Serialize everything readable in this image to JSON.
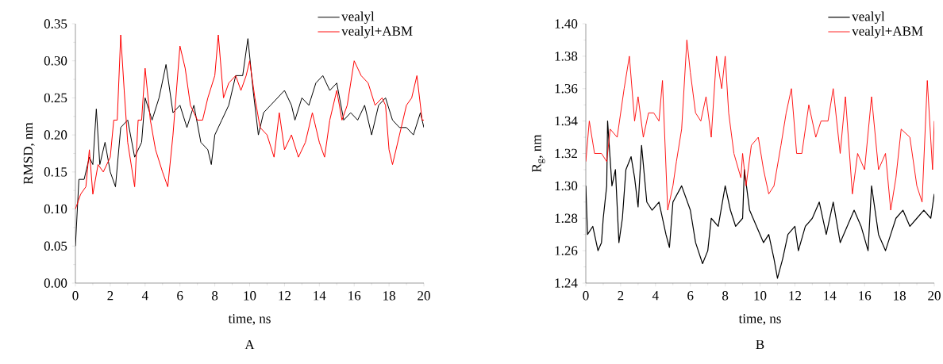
{
  "chart_data": [
    {
      "type": "line",
      "title": "A",
      "xlabel": "time, ns",
      "ylabel": "RMSD, nm",
      "legend": "top right",
      "xlim": [
        0,
        20
      ],
      "xticks": [
        0,
        2,
        4,
        6,
        8,
        10,
        12,
        14,
        16,
        18,
        20
      ],
      "ylim": [
        0,
        0.35
      ],
      "yticks": [
        {
          "value": 0,
          "label": "0.00"
        },
        {
          "value": 0.05,
          "label": "0.05"
        },
        {
          "value": 0.1,
          "label": "0.10"
        },
        {
          "value": 0.15,
          "label": "0.15"
        },
        {
          "value": 0.2,
          "label": "0.20"
        },
        {
          "value": 0.25,
          "label": "0.25"
        },
        {
          "value": 0.3,
          "label": "0.30"
        },
        {
          "value": 0.35,
          "label": "0.35"
        }
      ],
      "series": [
        {
          "name": "vealyl",
          "color": "#000000",
          "x": [
            0,
            0.2,
            0.5,
            0.8,
            1.0,
            1.2,
            1.4,
            1.7,
            2.0,
            2.3,
            2.6,
            3.0,
            3.4,
            3.8,
            4.0,
            4.4,
            4.8,
            5.2,
            5.6,
            6.0,
            6.4,
            6.8,
            7.2,
            7.6,
            7.8,
            8.0,
            8.4,
            8.8,
            9.2,
            9.6,
            9.9,
            10.2,
            10.5,
            10.8,
            11.2,
            11.6,
            12.0,
            12.4,
            12.6,
            13.0,
            13.4,
            13.8,
            14.2,
            14.6,
            15.0,
            15.4,
            15.8,
            16.2,
            16.6,
            17.0,
            17.4,
            17.8,
            18.2,
            18.6,
            19.0,
            19.4,
            19.8,
            20.0
          ],
          "values": [
            0.05,
            0.14,
            0.14,
            0.17,
            0.16,
            0.235,
            0.16,
            0.19,
            0.15,
            0.13,
            0.21,
            0.22,
            0.17,
            0.19,
            0.25,
            0.22,
            0.25,
            0.295,
            0.23,
            0.24,
            0.21,
            0.24,
            0.19,
            0.18,
            0.16,
            0.2,
            0.22,
            0.24,
            0.28,
            0.28,
            0.33,
            0.26,
            0.2,
            0.23,
            0.24,
            0.25,
            0.26,
            0.24,
            0.22,
            0.25,
            0.24,
            0.27,
            0.28,
            0.26,
            0.27,
            0.22,
            0.23,
            0.22,
            0.24,
            0.2,
            0.24,
            0.25,
            0.22,
            0.21,
            0.21,
            0.2,
            0.23,
            0.21
          ]
        },
        {
          "name": "vealyl+ABM",
          "color": "#ff0000",
          "x": [
            0,
            0.3,
            0.6,
            0.8,
            1.0,
            1.3,
            1.6,
            2.0,
            2.2,
            2.4,
            2.6,
            2.8,
            3.0,
            3.4,
            3.6,
            3.8,
            4.0,
            4.3,
            4.6,
            5.0,
            5.3,
            5.6,
            6.0,
            6.3,
            6.6,
            7.0,
            7.3,
            7.6,
            8.0,
            8.2,
            8.5,
            8.8,
            9.2,
            9.5,
            9.8,
            10.0,
            10.3,
            10.6,
            11.0,
            11.4,
            11.7,
            12.0,
            12.4,
            12.8,
            13.2,
            13.6,
            14.0,
            14.3,
            14.6,
            15.0,
            15.3,
            15.6,
            16.0,
            16.4,
            16.8,
            17.2,
            17.6,
            17.8,
            18.0,
            18.2,
            18.6,
            19.0,
            19.3,
            19.6,
            19.9,
            20.0
          ],
          "values": [
            0.1,
            0.12,
            0.13,
            0.18,
            0.12,
            0.16,
            0.15,
            0.17,
            0.22,
            0.22,
            0.335,
            0.26,
            0.19,
            0.13,
            0.22,
            0.22,
            0.29,
            0.22,
            0.18,
            0.15,
            0.13,
            0.2,
            0.32,
            0.29,
            0.24,
            0.22,
            0.22,
            0.25,
            0.28,
            0.335,
            0.25,
            0.27,
            0.28,
            0.26,
            0.28,
            0.3,
            0.25,
            0.21,
            0.2,
            0.17,
            0.23,
            0.18,
            0.2,
            0.17,
            0.19,
            0.23,
            0.19,
            0.17,
            0.22,
            0.26,
            0.22,
            0.24,
            0.3,
            0.28,
            0.27,
            0.24,
            0.25,
            0.24,
            0.18,
            0.16,
            0.2,
            0.24,
            0.25,
            0.28,
            0.22,
            0.22
          ]
        }
      ]
    },
    {
      "type": "line",
      "title": "B",
      "xlabel": "time, ns",
      "ylabel": "R$_{g}$, nm",
      "legend": "top right",
      "xlim": [
        0,
        20
      ],
      "xticks": [
        0,
        2,
        4,
        6,
        8,
        10,
        12,
        14,
        16,
        18,
        20
      ],
      "ylim": [
        1.24,
        1.4
      ],
      "yticks": [
        {
          "value": 1.24,
          "label": "1.24"
        },
        {
          "value": 1.26,
          "label": "1.26"
        },
        {
          "value": 1.28,
          "label": "1.28"
        },
        {
          "value": 1.3,
          "label": "1.30"
        },
        {
          "value": 1.32,
          "label": "1.32"
        },
        {
          "value": 1.34,
          "label": "1.34"
        },
        {
          "value": 1.36,
          "label": "1.36"
        },
        {
          "value": 1.38,
          "label": "1.38"
        },
        {
          "value": 1.4,
          "label": "1.40"
        }
      ],
      "series": [
        {
          "name": "vealyl",
          "color": "#000000",
          "x": [
            0,
            0.1,
            0.4,
            0.7,
            0.9,
            1.0,
            1.2,
            1.25,
            1.5,
            1.7,
            1.9,
            2.1,
            2.3,
            2.6,
            2.8,
            3.0,
            3.2,
            3.5,
            3.8,
            4.2,
            4.6,
            4.8,
            5.0,
            5.5,
            6.0,
            6.3,
            6.7,
            7.0,
            7.2,
            7.6,
            8.0,
            8.3,
            8.6,
            9.0,
            9.1,
            9.4,
            9.8,
            10.2,
            10.5,
            10.8,
            11.0,
            11.3,
            11.6,
            12.0,
            12.2,
            12.6,
            13.0,
            13.4,
            13.8,
            14.2,
            14.6,
            15.0,
            15.4,
            15.8,
            16.2,
            16.4,
            16.8,
            17.2,
            17.5,
            17.8,
            18.2,
            18.6,
            19.0,
            19.4,
            19.8,
            20.0
          ],
          "values": [
            1.3,
            1.27,
            1.275,
            1.26,
            1.265,
            1.28,
            1.3,
            1.34,
            1.3,
            1.31,
            1.265,
            1.28,
            1.31,
            1.318,
            1.305,
            1.287,
            1.325,
            1.29,
            1.285,
            1.29,
            1.27,
            1.262,
            1.29,
            1.3,
            1.285,
            1.265,
            1.252,
            1.26,
            1.28,
            1.275,
            1.3,
            1.285,
            1.275,
            1.28,
            1.31,
            1.285,
            1.275,
            1.265,
            1.27,
            1.255,
            1.243,
            1.255,
            1.27,
            1.275,
            1.26,
            1.275,
            1.28,
            1.29,
            1.27,
            1.29,
            1.265,
            1.275,
            1.285,
            1.275,
            1.26,
            1.3,
            1.27,
            1.26,
            1.27,
            1.28,
            1.285,
            1.275,
            1.28,
            1.285,
            1.28,
            1.295
          ]
        },
        {
          "name": "vealyl+ABM",
          "color": "#ff0000",
          "x": [
            0,
            0.2,
            0.5,
            0.9,
            1.2,
            1.4,
            1.8,
            2.2,
            2.5,
            2.8,
            3.0,
            3.3,
            3.6,
            3.9,
            4.2,
            4.4,
            4.7,
            5.0,
            5.2,
            5.5,
            5.8,
            6.0,
            6.3,
            6.6,
            6.9,
            7.2,
            7.5,
            7.8,
            8.0,
            8.2,
            8.5,
            8.9,
            9.0,
            9.2,
            9.5,
            9.9,
            10.2,
            10.5,
            10.8,
            11.2,
            11.5,
            11.8,
            12.1,
            12.4,
            12.8,
            13.2,
            13.5,
            13.9,
            14.2,
            14.6,
            14.9,
            15.3,
            15.6,
            16.0,
            16.4,
            16.8,
            17.2,
            17.5,
            17.8,
            18.1,
            18.6,
            19.0,
            19.3,
            19.6,
            19.9,
            20.0
          ],
          "values": [
            1.315,
            1.34,
            1.32,
            1.32,
            1.315,
            1.335,
            1.33,
            1.36,
            1.38,
            1.34,
            1.355,
            1.33,
            1.345,
            1.345,
            1.34,
            1.365,
            1.285,
            1.3,
            1.315,
            1.335,
            1.39,
            1.37,
            1.345,
            1.34,
            1.355,
            1.33,
            1.38,
            1.36,
            1.38,
            1.345,
            1.32,
            1.305,
            1.32,
            1.3,
            1.325,
            1.33,
            1.31,
            1.295,
            1.3,
            1.325,
            1.345,
            1.36,
            1.32,
            1.32,
            1.35,
            1.33,
            1.34,
            1.34,
            1.36,
            1.32,
            1.355,
            1.295,
            1.32,
            1.31,
            1.355,
            1.31,
            1.32,
            1.285,
            1.305,
            1.335,
            1.33,
            1.3,
            1.29,
            1.365,
            1.31,
            1.34
          ]
        }
      ]
    }
  ]
}
